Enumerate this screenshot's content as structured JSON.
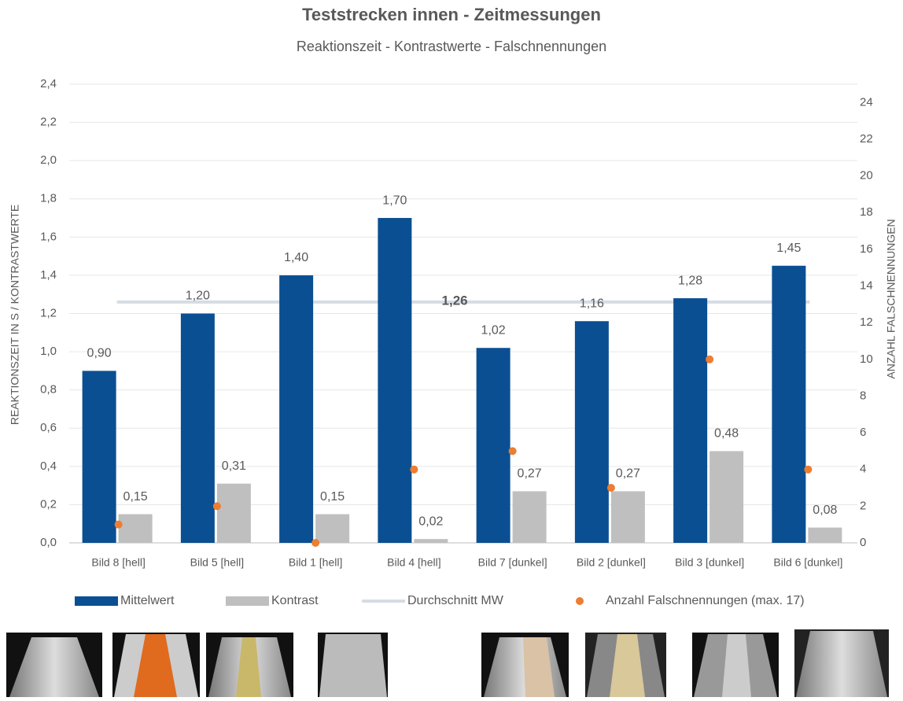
{
  "chart_data": {
    "type": "combo",
    "title": "Teststrecken innen - Zeitmessungen",
    "subtitle": "Reaktionszeit - Kontrastwerte - Falschnennungen",
    "y_label": "REAKTIONSZEIT IN S / KONTRASTWERTE",
    "y2_label": "ANZAHL FALSCHNENNUNGEN",
    "categories": [
      "Bild 8 [hell]",
      "Bild 5 [hell]",
      "Bild 1 [hell]",
      "Bild 4 [hell]",
      "Bild 7 [dunkel]",
      "Bild 2 [dunkel]",
      "Bild 3 [dunkel]",
      "Bild 6 [dunkel]"
    ],
    "series": [
      {
        "name": "Mittelwert",
        "type": "bar",
        "color": "#0b4f93",
        "values": [
          0.9,
          1.2,
          1.4,
          1.7,
          1.02,
          1.16,
          1.28,
          1.45
        ],
        "value_labels": [
          "0,90",
          "1,20",
          "1,40",
          "1,70",
          "1,02",
          "1,16",
          "1,28",
          "1,45"
        ]
      },
      {
        "name": "Kontrast",
        "type": "bar",
        "color": "#bfbfbf",
        "values": [
          0.15,
          0.31,
          0.15,
          0.02,
          0.27,
          0.27,
          0.48,
          0.08
        ],
        "value_labels": [
          "0,15",
          "0,31",
          "0,15",
          "0,02",
          "0,27",
          "0,27",
          "0,48",
          "0,08"
        ]
      },
      {
        "name": "Durchschnitt MW",
        "type": "line",
        "color": "#d6dce4",
        "values": [
          1.26,
          1.26,
          1.26,
          1.26,
          1.26,
          1.26,
          1.26,
          1.26
        ],
        "value_labels": [
          null,
          null,
          null,
          "1,26",
          null,
          null,
          null,
          null
        ]
      },
      {
        "name": "Anzahl Falschnennungen (max. 17)",
        "type": "scatter",
        "axis": "y2",
        "color": "#ed7d31",
        "values": [
          1,
          2,
          0,
          4,
          5,
          3,
          10,
          4
        ]
      }
    ],
    "ylim": [
      0,
      2.4
    ],
    "yticks": [
      {
        "value": 0,
        "label": "0,0"
      },
      {
        "value": 0.2,
        "label": "0,2"
      },
      {
        "value": 0.4,
        "label": "0,4"
      },
      {
        "value": 0.6,
        "label": "0,6"
      },
      {
        "value": 0.8,
        "label": "0,8"
      },
      {
        "value": 1.0,
        "label": "1,0"
      },
      {
        "value": 1.2,
        "label": "1,2"
      },
      {
        "value": 1.4,
        "label": "1,4"
      },
      {
        "value": 1.6,
        "label": "1,6"
      },
      {
        "value": 1.8,
        "label": "1,8"
      },
      {
        "value": 2.0,
        "label": "2,0"
      },
      {
        "value": 2.2,
        "label": "2,2"
      },
      {
        "value": 2.4,
        "label": "2,4"
      }
    ],
    "y2lim": [
      0,
      25
    ],
    "y2ticks": [
      0,
      2,
      4,
      6,
      8,
      10,
      12,
      14,
      16,
      18,
      20,
      22,
      24
    ],
    "grid": true
  }
}
